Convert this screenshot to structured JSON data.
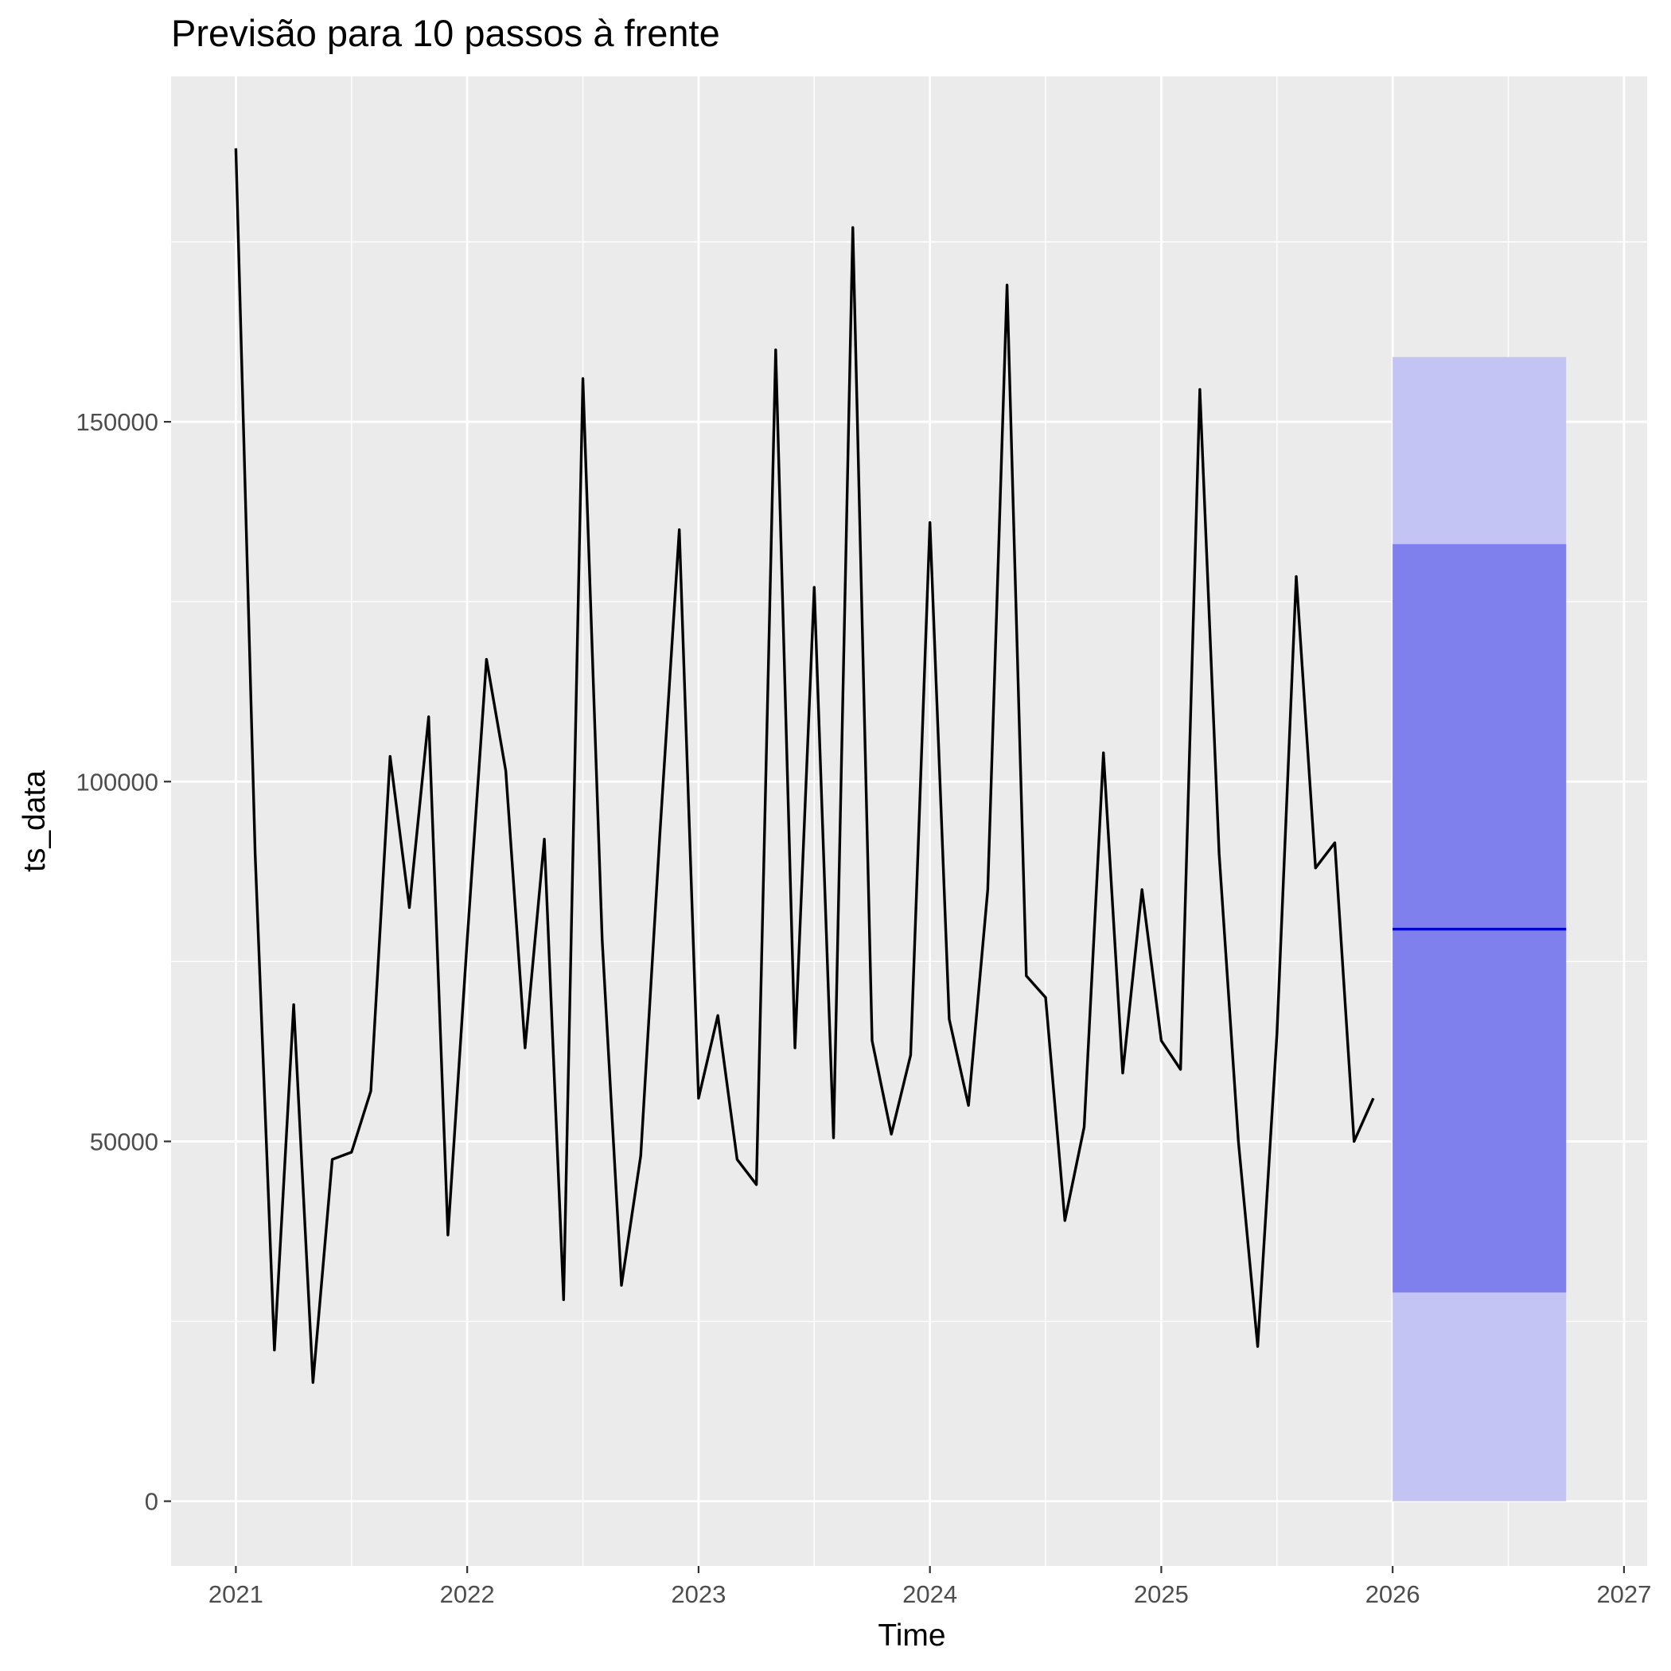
{
  "chart_data": {
    "type": "line",
    "title": "Previsão para 10 passos à frente",
    "xlabel": "Time",
    "ylabel": "ts_data",
    "xlim": [
      2020.72,
      2027.1
    ],
    "ylim": [
      -9000,
      198000
    ],
    "x_ticks": [
      2021,
      2022,
      2023,
      2024,
      2025,
      2026,
      2027
    ],
    "x_tick_labels": [
      "2021",
      "2022",
      "2023",
      "2024",
      "2025",
      "2026",
      "2027"
    ],
    "y_ticks": [
      0,
      50000,
      100000,
      150000
    ],
    "y_tick_labels": [
      "0",
      "50000",
      "100000",
      "150000"
    ],
    "grid": true,
    "legend": "none",
    "series": [
      {
        "start": 2021.0,
        "frequency": 12,
        "color": "#000000",
        "values": [
          188000,
          90000,
          21000,
          69000,
          16500,
          47500,
          48500,
          57000,
          103500,
          82500,
          109000,
          37000,
          78000,
          117000,
          101500,
          63000,
          92000,
          28000,
          156000,
          78000,
          30000,
          48000,
          93000,
          135000,
          56000,
          67500,
          47500,
          44000,
          160000,
          63000,
          127000,
          50500,
          177000,
          64000,
          51000,
          62000,
          136000,
          67000,
          55000,
          85000,
          169000,
          73000,
          70000,
          39000,
          52000,
          104000,
          59500,
          85000,
          64000,
          60000,
          154500,
          90000,
          50000,
          21500,
          65000,
          128500,
          88000,
          91500,
          50000,
          56000
        ]
      }
    ],
    "forecast": {
      "start": 2026.0,
      "end": 2026.75,
      "point": 79500,
      "line_color": "#0000cc",
      "interval_80": [
        29000,
        133000
      ],
      "interval_95": [
        0,
        159000
      ],
      "color_80": "#7f7fed",
      "color_95": "#c4c4f4"
    }
  }
}
